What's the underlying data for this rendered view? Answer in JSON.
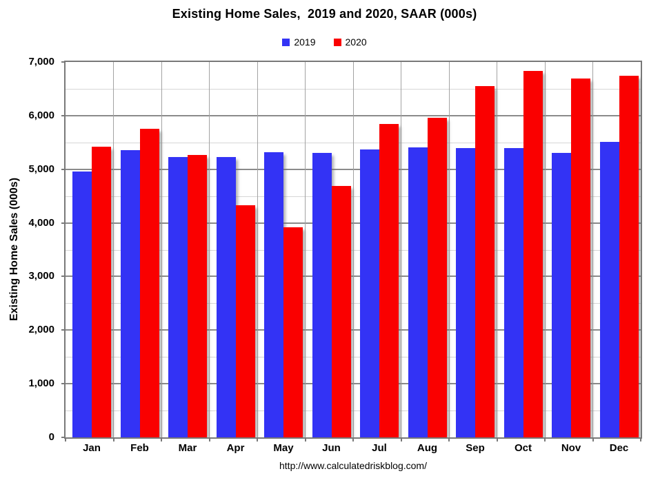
{
  "source_url": "http://www.calculatedriskblog.com/",
  "colors": {
    "series_2019": "#3333f5",
    "series_2020": "#fa0000",
    "grid_major": "#8a8a8a",
    "grid_minor": "#d6d6d6",
    "plot_border": "#787878"
  },
  "y_axis": {
    "title": "Existing Home Sales (000s)",
    "tick_labels": [
      "7,000",
      "6,000",
      "5,000",
      "4,000",
      "3,000",
      "2,000",
      "1,000",
      "0"
    ]
  },
  "chart_data": {
    "type": "bar",
    "title": "Existing Home Sales,  2019 and 2020, SAAR (000s)",
    "categories": [
      "Jan",
      "Feb",
      "Mar",
      "Apr",
      "May",
      "Jun",
      "Jul",
      "Aug",
      "Sep",
      "Oct",
      "Nov",
      "Dec"
    ],
    "series": [
      {
        "name": "2019",
        "color": "#3333f5",
        "values": [
          4960,
          5360,
          5230,
          5230,
          5320,
          5310,
          5370,
          5410,
          5390,
          5390,
          5310,
          5510
        ]
      },
      {
        "name": "2020",
        "color": "#fa0000",
        "values": [
          5420,
          5750,
          5270,
          4330,
          3920,
          4690,
          5840,
          5960,
          6550,
          6830,
          6690,
          6740
        ]
      }
    ],
    "xlabel": "",
    "ylabel": "Existing Home Sales (000s)",
    "ylim": [
      0,
      7000
    ],
    "y_major_step": 1000,
    "y_minor_step": 500,
    "grid": true,
    "legend_position": "top-center"
  }
}
